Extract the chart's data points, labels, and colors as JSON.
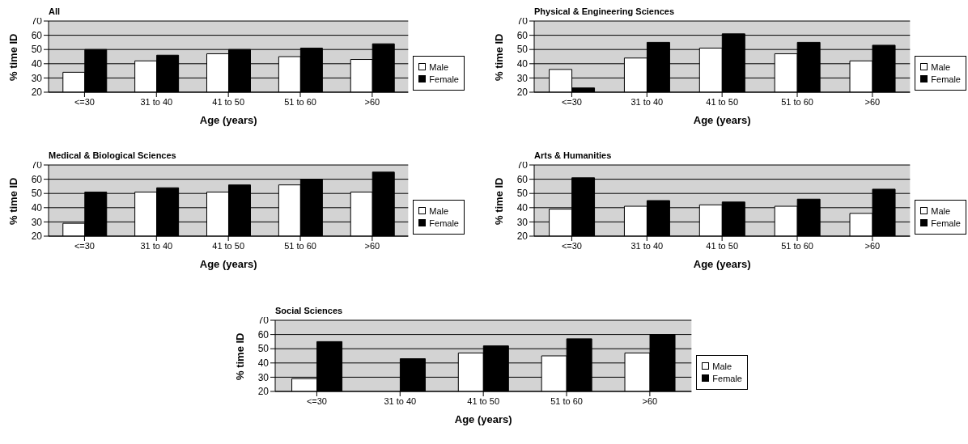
{
  "chart_data": [
    {
      "type": "bar",
      "title": "All",
      "xlabel": "Age (years)",
      "ylabel": "% time ID",
      "categories": [
        "<=30",
        "31 to 40",
        "41 to 50",
        "51 to 60",
        ">60"
      ],
      "series": [
        {
          "name": "Male",
          "color": "#ffffff",
          "values": [
            34,
            42,
            47,
            45,
            43
          ]
        },
        {
          "name": "Female",
          "color": "#000000",
          "values": [
            50,
            46,
            50,
            51,
            54
          ]
        }
      ],
      "ylim": [
        20,
        70
      ],
      "yticks": [
        20,
        30,
        40,
        50,
        60,
        70
      ],
      "grid": "y",
      "legend": "right"
    },
    {
      "type": "bar",
      "title": "Physical & Engineering Sciences",
      "xlabel": "Age (years)",
      "ylabel": "% time ID",
      "categories": [
        "<=30",
        "31 to 40",
        "41 to 50",
        "51 to 60",
        ">60"
      ],
      "series": [
        {
          "name": "Male",
          "color": "#ffffff",
          "values": [
            36,
            44,
            51,
            47,
            42
          ]
        },
        {
          "name": "Female",
          "color": "#000000",
          "values": [
            23,
            55,
            61,
            55,
            53
          ]
        }
      ],
      "ylim": [
        20,
        70
      ],
      "yticks": [
        20,
        30,
        40,
        50,
        60,
        70
      ],
      "grid": "y",
      "legend": "right"
    },
    {
      "type": "bar",
      "title": "Medical & Biological Sciences",
      "xlabel": "Age (years)",
      "ylabel": "% time ID",
      "categories": [
        "<=30",
        "31 to 40",
        "41 to 50",
        "51 to 60",
        ">60"
      ],
      "series": [
        {
          "name": "Male",
          "color": "#ffffff",
          "values": [
            29,
            51,
            51,
            56,
            51
          ]
        },
        {
          "name": "Female",
          "color": "#000000",
          "values": [
            51,
            54,
            56,
            60,
            65
          ]
        }
      ],
      "ylim": [
        20,
        70
      ],
      "yticks": [
        20,
        30,
        40,
        50,
        60,
        70
      ],
      "grid": "y",
      "legend": "right"
    },
    {
      "type": "bar",
      "title": "Arts & Humanities",
      "xlabel": "Age (years)",
      "ylabel": "% time ID",
      "categories": [
        "<=30",
        "31 to 40",
        "41 to 50",
        "51 to 60",
        ">60"
      ],
      "series": [
        {
          "name": "Male",
          "color": "#ffffff",
          "values": [
            39,
            41,
            42,
            41,
            36
          ]
        },
        {
          "name": "Female",
          "color": "#000000",
          "values": [
            61,
            45,
            44,
            46,
            53
          ]
        }
      ],
      "ylim": [
        20,
        70
      ],
      "yticks": [
        20,
        30,
        40,
        50,
        60,
        70
      ],
      "grid": "y",
      "legend": "right"
    },
    {
      "type": "bar",
      "title": "Social Sciences",
      "xlabel": "Age (years)",
      "ylabel": "% time ID",
      "categories": [
        "<=30",
        "31 to 40",
        "41 to 50",
        "51 to 60",
        ">60"
      ],
      "series": [
        {
          "name": "Male",
          "color": "#ffffff",
          "values": [
            29,
            null,
            47,
            45,
            47
          ]
        },
        {
          "name": "Female",
          "color": "#000000",
          "values": [
            55,
            43,
            52,
            57,
            60
          ]
        }
      ],
      "ylim": [
        20,
        70
      ],
      "yticks": [
        20,
        30,
        40,
        50,
        60,
        70
      ],
      "grid": "y",
      "legend": "right"
    }
  ]
}
